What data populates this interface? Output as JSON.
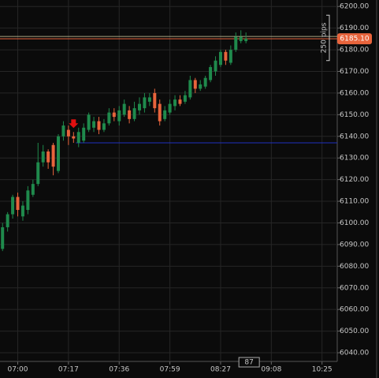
{
  "chart_data": {
    "type": "candlestick",
    "candles": [
      [
        6088,
        6100,
        6087,
        6098
      ],
      [
        6098,
        6105,
        6096,
        6104
      ],
      [
        6104,
        6113,
        6102,
        6112
      ],
      [
        6112,
        6114,
        6103,
        6106
      ],
      [
        6103,
        6110,
        6101,
        6108
      ],
      [
        6106,
        6117,
        6104,
        6115
      ],
      [
        6113,
        6120,
        6112,
        6118
      ],
      [
        6118,
        6137,
        6117,
        6128
      ],
      [
        6128,
        6136,
        6126,
        6133
      ],
      [
        6133,
        6134,
        6125,
        6128
      ],
      [
        6136,
        6137,
        6122,
        6126
      ],
      [
        6124,
        6141,
        6123,
        6140
      ],
      [
        6140,
        6147,
        6138,
        6145
      ],
      [
        6143,
        6145,
        6136,
        6140
      ],
      [
        6140,
        6142,
        6137,
        6139
      ],
      [
        6137,
        6144,
        6135,
        6142
      ],
      [
        6138,
        6146,
        6137,
        6144
      ],
      [
        6143,
        6151,
        6142,
        6150
      ],
      [
        6144,
        6149,
        6142,
        6147
      ],
      [
        6147,
        6149,
        6141,
        6143
      ],
      [
        6143,
        6148,
        6142,
        6146
      ],
      [
        6146,
        6153,
        6145,
        6151
      ],
      [
        6151,
        6153,
        6147,
        6149
      ],
      [
        6147,
        6154,
        6145,
        6152
      ],
      [
        6150,
        6157,
        6149,
        6155
      ],
      [
        6152,
        6154,
        6146,
        6148
      ],
      [
        6148,
        6156,
        6147,
        6153
      ],
      [
        6152,
        6158,
        6150,
        6155
      ],
      [
        6153,
        6160,
        6151,
        6158
      ],
      [
        6156,
        6160,
        6154,
        6158
      ],
      [
        6160,
        6162,
        6151,
        6153
      ],
      [
        6155,
        6157,
        6145,
        6147
      ],
      [
        6148,
        6154,
        6147,
        6152
      ],
      [
        6151,
        6157,
        6150,
        6155
      ],
      [
        6154,
        6159,
        6152,
        6157
      ],
      [
        6157,
        6159,
        6154,
        6155
      ],
      [
        6156,
        6161,
        6155,
        6159
      ],
      [
        6158,
        6168,
        6157,
        6166
      ],
      [
        6166,
        6167,
        6160,
        6162
      ],
      [
        6162,
        6166,
        6161,
        6164
      ],
      [
        6163,
        6168,
        6162,
        6167
      ],
      [
        6166,
        6173,
        6165,
        6172
      ],
      [
        6170,
        6177,
        6168,
        6175
      ],
      [
        6173,
        6180,
        6172,
        6179
      ],
      [
        6179,
        6180,
        6173,
        6175
      ],
      [
        6174,
        6182,
        6173,
        6180
      ],
      [
        6180,
        6188,
        6179,
        6186
      ],
      [
        6184,
        6189,
        6183,
        6186
      ],
      [
        6184,
        6188,
        6183,
        6185.1
      ]
    ],
    "up_color": "#1f8a4c",
    "down_color": "#e8643c",
    "xlim": [
      -0.5,
      66
    ],
    "xticks": [
      {
        "value": 3,
        "label": "07:00"
      },
      {
        "value": 13,
        "label": "07:17"
      },
      {
        "value": 23,
        "label": "07:36"
      },
      {
        "value": 33,
        "label": "07:59"
      },
      {
        "value": 43,
        "label": "08:27"
      },
      {
        "value": 53,
        "label": "09:08"
      },
      {
        "value": 63,
        "label": "10:25"
      }
    ],
    "ylim": [
      6036,
      6203
    ],
    "yticks": [
      {
        "value": 6040,
        "label": "6040.00"
      },
      {
        "value": 6050,
        "label": "6050.00"
      },
      {
        "value": 6060,
        "label": "6060.00"
      },
      {
        "value": 6070,
        "label": "6070.00"
      },
      {
        "value": 6080,
        "label": "6080.00"
      },
      {
        "value": 6090,
        "label": "6090.00"
      },
      {
        "value": 6100,
        "label": "6100.00"
      },
      {
        "value": 6110,
        "label": "6110.00"
      },
      {
        "value": 6120,
        "label": "6120.00"
      },
      {
        "value": 6130,
        "label": "6130.00"
      },
      {
        "value": 6140,
        "label": "6140.00"
      },
      {
        "value": 6150,
        "label": "6150.00"
      },
      {
        "value": 6160,
        "label": "6160.00"
      },
      {
        "value": 6170,
        "label": "6170.00"
      },
      {
        "value": 6180,
        "label": "6180.00"
      },
      {
        "value": 6190,
        "label": "6190.00"
      },
      {
        "value": 6200,
        "label": "6200.00"
      }
    ],
    "grid": true,
    "price_line": {
      "value": 6185.1,
      "label": "6185.10",
      "color": "#e8643c"
    },
    "level_line": {
      "value": 6137,
      "color": "#1f2fbf"
    },
    "signal": {
      "index": 14,
      "color": "#e01010"
    },
    "pips_label": "250 pips",
    "bar_count_label": "87"
  }
}
